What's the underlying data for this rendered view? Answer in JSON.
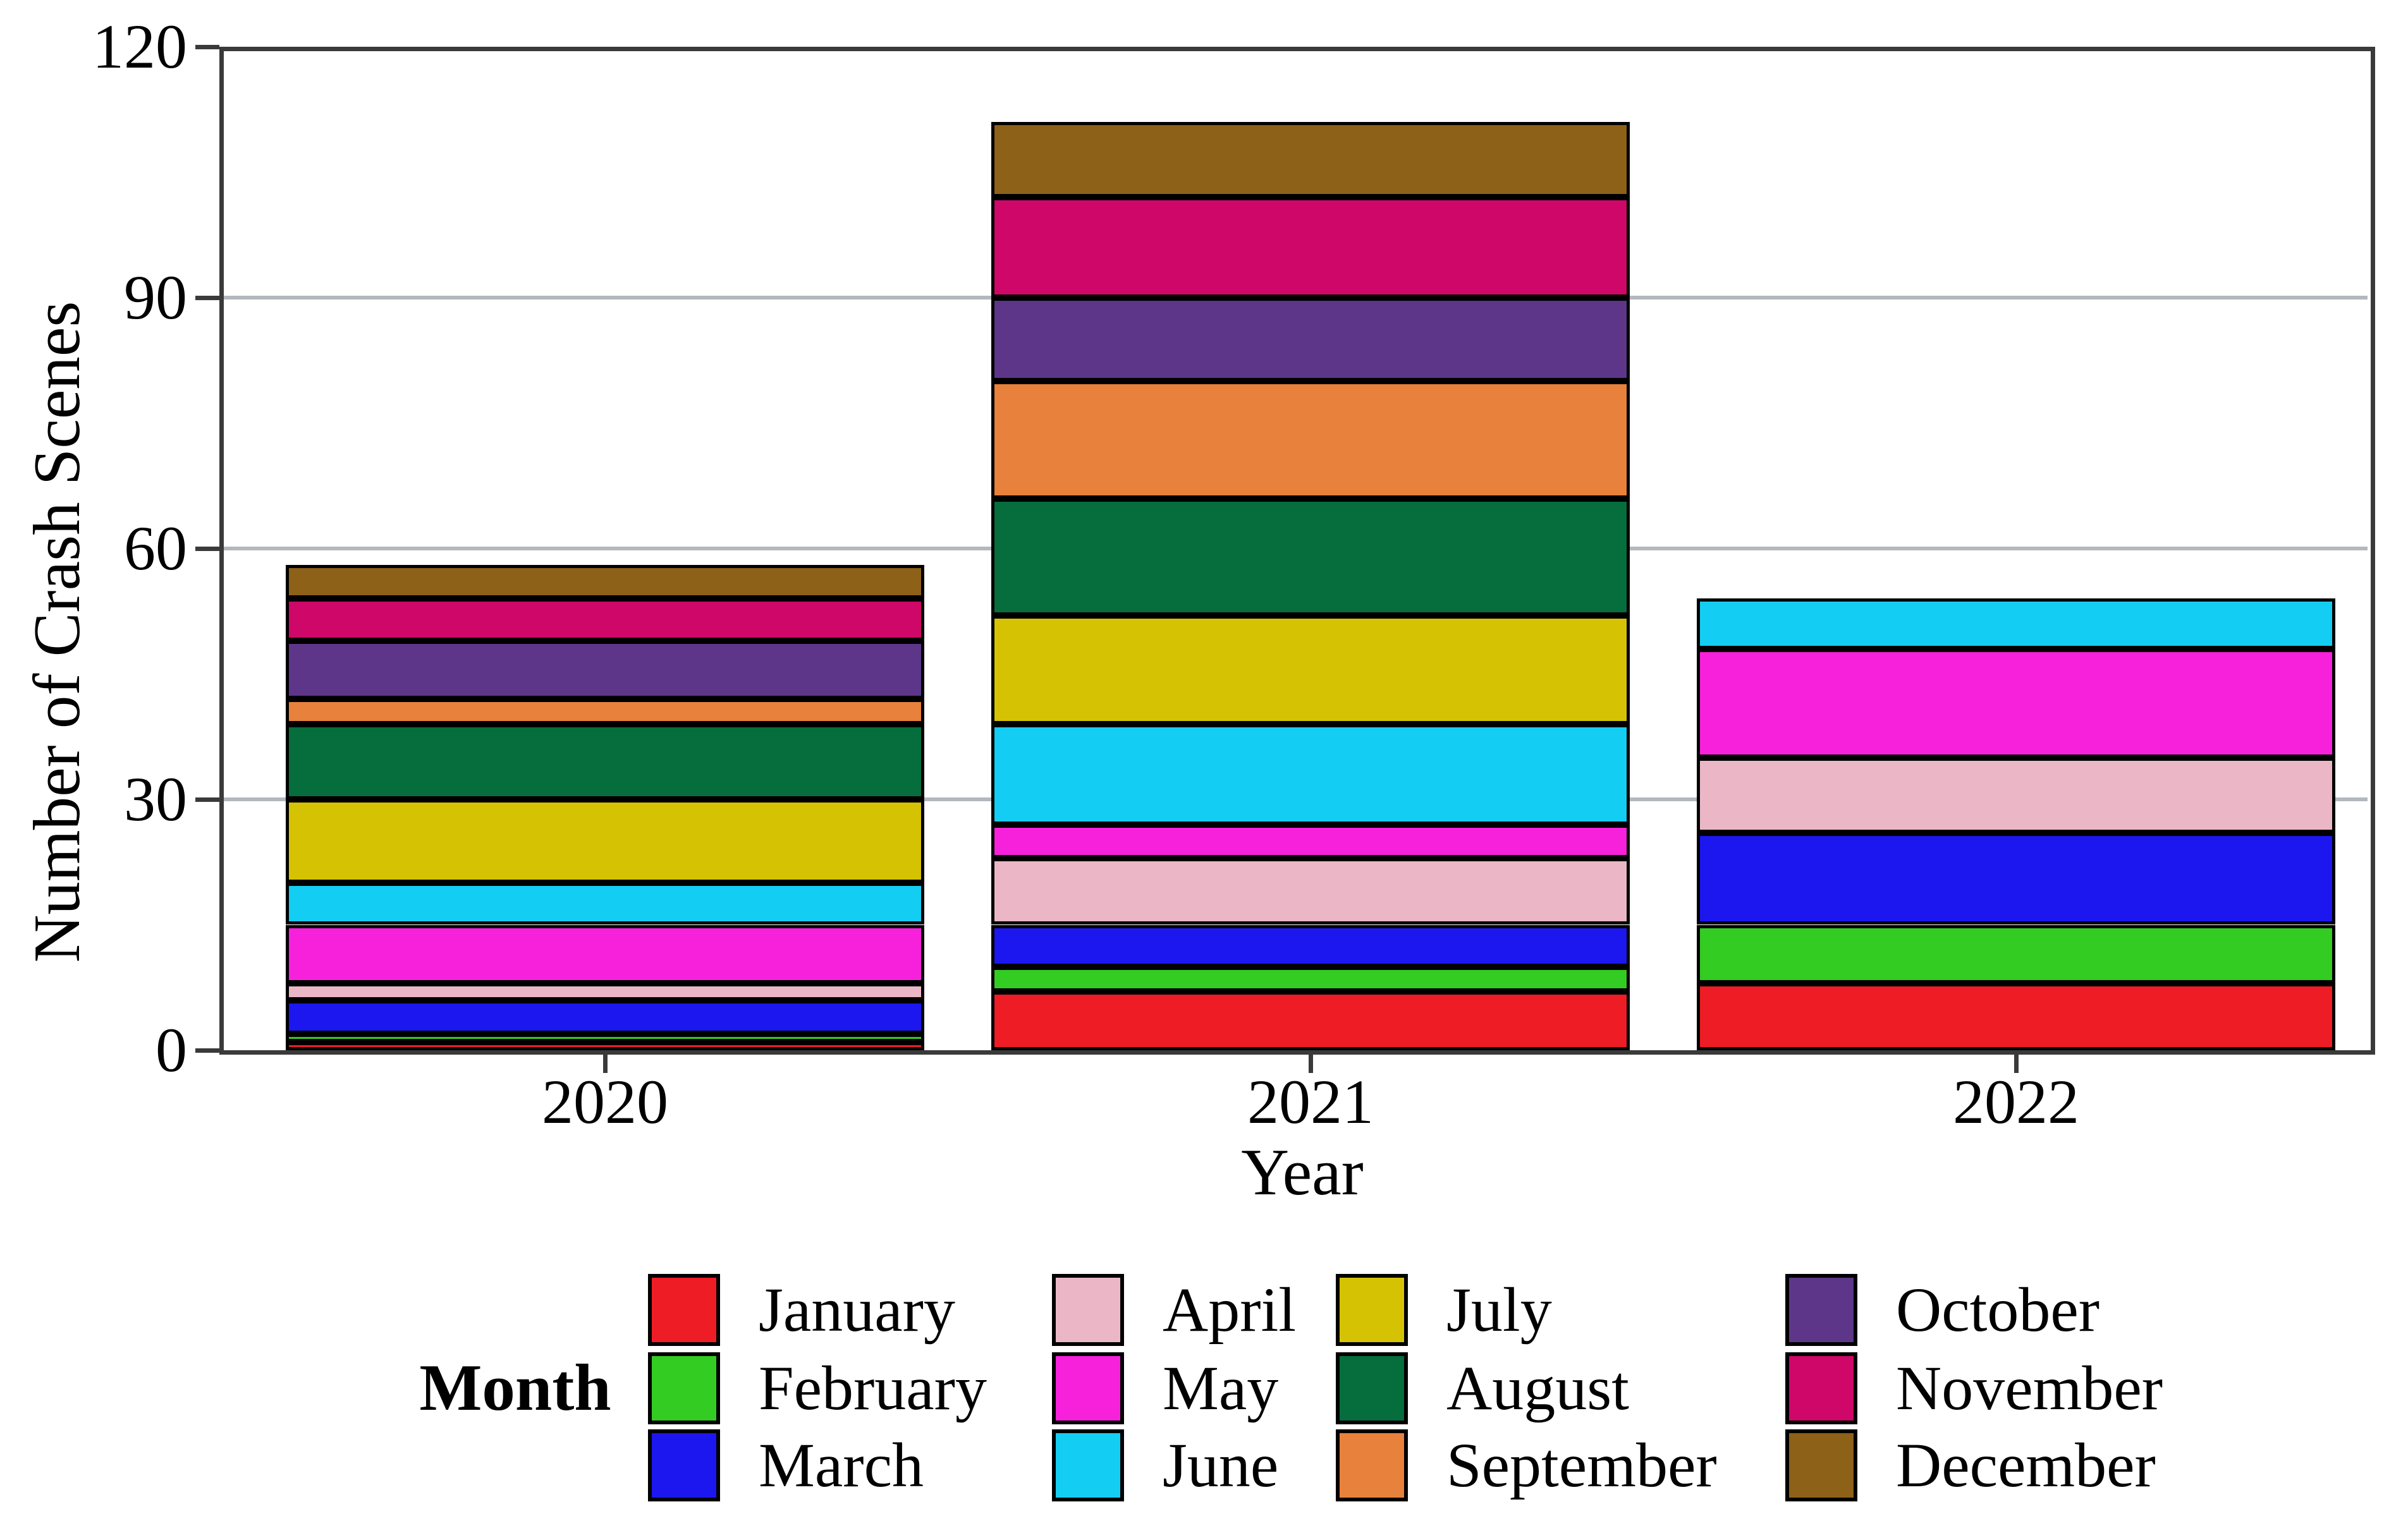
{
  "chart_data": {
    "type": "bar",
    "stacked": true,
    "title": "",
    "xlabel": "Year",
    "ylabel": "Number of Crash Scenes",
    "categories": [
      "2020",
      "2021",
      "2022"
    ],
    "ylim": [
      0,
      120
    ],
    "yticks": [
      "0",
      "30",
      "60",
      "90",
      "120"
    ],
    "grid": "horizontal",
    "legend_title": "Month",
    "legend_position": "bottom",
    "series": [
      {
        "name": "January",
        "color": "#ee1c25",
        "values": [
          1,
          7,
          8
        ]
      },
      {
        "name": "February",
        "color": "#33cc22",
        "values": [
          1,
          3,
          7
        ]
      },
      {
        "name": "March",
        "color": "#1c17ee",
        "values": [
          4,
          5,
          11
        ]
      },
      {
        "name": "April",
        "color": "#ebb7c6",
        "values": [
          2,
          8,
          9
        ]
      },
      {
        "name": "May",
        "color": "#f721dc",
        "values": [
          7,
          4,
          13
        ]
      },
      {
        "name": "June",
        "color": "#14cdf2",
        "values": [
          5,
          12,
          6
        ]
      },
      {
        "name": "July",
        "color": "#d5c303",
        "values": [
          10,
          13,
          0
        ]
      },
      {
        "name": "August",
        "color": "#056e3c",
        "values": [
          9,
          14,
          0
        ]
      },
      {
        "name": "September",
        "color": "#e8813b",
        "values": [
          3,
          14,
          0
        ]
      },
      {
        "name": "October",
        "color": "#5e3689",
        "values": [
          7,
          10,
          0
        ]
      },
      {
        "name": "November",
        "color": "#ce0769",
        "values": [
          5,
          12,
          0
        ]
      },
      {
        "name": "December",
        "color": "#8d6117",
        "values": [
          4,
          9,
          0
        ]
      }
    ],
    "bar_totals": [
      58,
      111,
      54
    ],
    "frame_color": "#3a3a3a",
    "gridline_color": "#b3b8bd"
  }
}
